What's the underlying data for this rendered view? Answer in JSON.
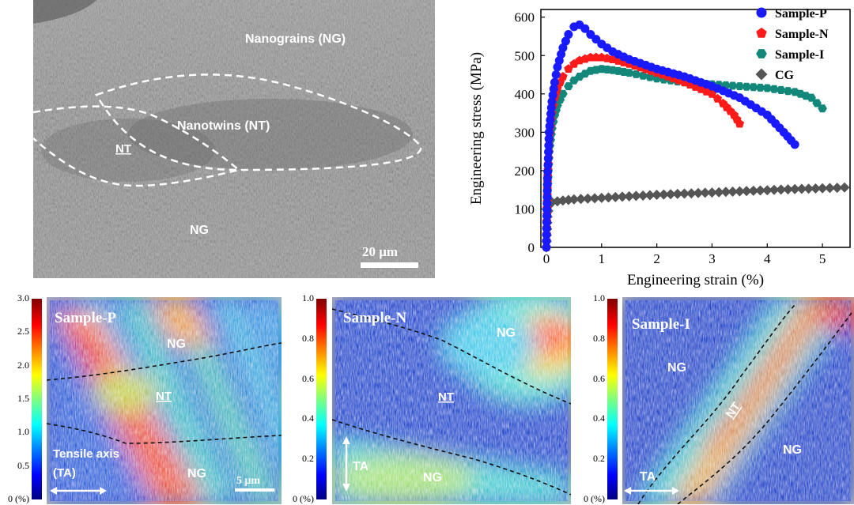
{
  "sem_panel": {
    "label_ng_top": "Nanograins (NG)",
    "label_nt_center": "Nanotwins (NT)",
    "label_nt_left": "NT",
    "label_ng_bottom": "NG",
    "scale_bar": "20 μm"
  },
  "chart_data": {
    "type": "scatter",
    "xlabel": "Engineering strain (%)",
    "ylabel": "Engineering stress (MPa)",
    "xlim": [
      -0.1,
      5.5
    ],
    "ylim": [
      0,
      620
    ],
    "xticks": [
      0,
      1,
      2,
      3,
      4,
      5
    ],
    "yticks": [
      0,
      100,
      200,
      300,
      400,
      500,
      600
    ],
    "legend_position": "top-right",
    "series": [
      {
        "name": "Sample-P",
        "color": "#1a1aff",
        "marker": "circle",
        "x": [
          0,
          0.02,
          0.05,
          0.1,
          0.15,
          0.2,
          0.3,
          0.4,
          0.5,
          0.6,
          0.7,
          0.8,
          1.0,
          1.2,
          1.5,
          2.0,
          2.5,
          3.0,
          3.5,
          4.0,
          4.3,
          4.5
        ],
        "y": [
          0,
          180,
          300,
          380,
          430,
          470,
          520,
          555,
          575,
          580,
          570,
          555,
          530,
          510,
          490,
          465,
          445,
          420,
          390,
          345,
          300,
          268
        ]
      },
      {
        "name": "Sample-N",
        "color": "#ff1a1a",
        "marker": "pentagon",
        "x": [
          0,
          0.02,
          0.05,
          0.1,
          0.15,
          0.2,
          0.3,
          0.4,
          0.5,
          0.6,
          0.8,
          1.0,
          1.2,
          1.5,
          2.0,
          2.5,
          3.0,
          3.2,
          3.4,
          3.5
        ],
        "y": [
          0,
          170,
          280,
          350,
          390,
          415,
          445,
          465,
          478,
          487,
          495,
          495,
          490,
          478,
          455,
          430,
          400,
          375,
          345,
          322
        ]
      },
      {
        "name": "Sample-I",
        "color": "#12877a",
        "marker": "hexagon",
        "x": [
          0,
          0.02,
          0.05,
          0.1,
          0.15,
          0.2,
          0.3,
          0.4,
          0.5,
          0.6,
          0.8,
          1.0,
          1.2,
          1.5,
          2.0,
          2.5,
          3.0,
          3.5,
          4.0,
          4.5,
          4.8,
          5.0
        ],
        "y": [
          0,
          150,
          250,
          310,
          345,
          370,
          400,
          420,
          435,
          445,
          460,
          465,
          462,
          455,
          440,
          430,
          425,
          420,
          415,
          405,
          390,
          362
        ]
      },
      {
        "name": "CG",
        "color": "#555555",
        "marker": "diamond",
        "x": [
          0,
          0.02,
          0.05,
          0.1,
          0.3,
          0.5,
          1.0,
          1.5,
          2.0,
          2.5,
          3.0,
          3.5,
          4.0,
          4.5,
          5.0,
          5.4
        ],
        "y": [
          0,
          80,
          110,
          118,
          122,
          125,
          129,
          133,
          137,
          140,
          143,
          146,
          149,
          152,
          154,
          156
        ]
      }
    ]
  },
  "maps": [
    {
      "title": "Sample-P",
      "cbar_ticks": [
        "3.0",
        "2.5",
        "2.0",
        "1.5",
        "1.0",
        "0.5",
        "0 (%)"
      ],
      "labels": {
        "ng_top": "NG",
        "nt": "NT",
        "ng_bottom": "NG"
      },
      "axis_label": "Tensile axis\n(TA)",
      "axis_label_line1": "Tensile axis",
      "axis_label_line2": "(TA)",
      "scale": "5 μm"
    },
    {
      "title": "Sample-N",
      "cbar_ticks": [
        "1.0",
        "0.8",
        "0.6",
        "0.4",
        "0.2",
        "0 (%)"
      ],
      "labels": {
        "ng_top": "NG",
        "nt": "NT",
        "ng_bottom": "NG"
      },
      "axis_label": "TA"
    },
    {
      "title": "Sample-I",
      "cbar_ticks": [
        "1.0",
        "0.8",
        "0.6",
        "0.4",
        "0.2",
        "0 (%)"
      ],
      "labels": {
        "ng_top": "NG",
        "nt": "NT",
        "ng_bottom": "NG"
      },
      "axis_label": "TA"
    }
  ]
}
